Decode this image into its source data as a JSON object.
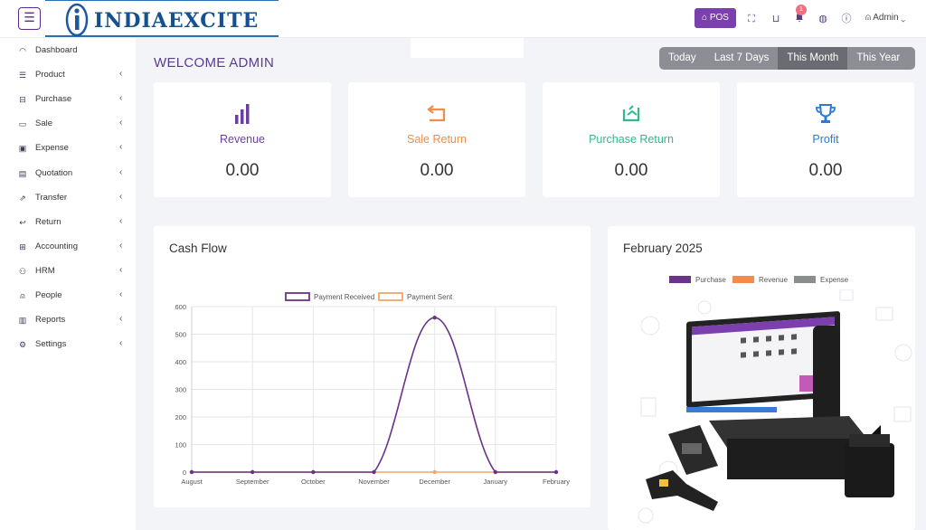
{
  "header": {
    "menu_icon": "hamburger-icon",
    "logo_text": "INDIAEXCITE",
    "pos_label": "POS",
    "notification_count": "1",
    "user_label": "Admin"
  },
  "sidebar": {
    "items": [
      {
        "label": "Dashboard",
        "icon": "dashboard-icon",
        "chevron": ""
      },
      {
        "label": "Product",
        "icon": "list-icon",
        "chevron": "‹"
      },
      {
        "label": "Purchase",
        "icon": "cart-icon",
        "chevron": "‹"
      },
      {
        "label": "Sale",
        "icon": "receipt-icon",
        "chevron": "‹"
      },
      {
        "label": "Expense",
        "icon": "wallet-icon",
        "chevron": "‹"
      },
      {
        "label": "Quotation",
        "icon": "document-icon",
        "chevron": "‹"
      },
      {
        "label": "Transfer",
        "icon": "transfer-icon",
        "chevron": "‹"
      },
      {
        "label": "Return",
        "icon": "return-icon",
        "chevron": "‹"
      },
      {
        "label": "Accounting",
        "icon": "briefcase-icon",
        "chevron": "‹"
      },
      {
        "label": "HRM",
        "icon": "team-icon",
        "chevron": "‹"
      },
      {
        "label": "People",
        "icon": "user-icon",
        "chevron": "‹"
      },
      {
        "label": "Reports",
        "icon": "report-icon",
        "chevron": "‹"
      },
      {
        "label": "Settings",
        "icon": "gear-icon",
        "chevron": "‹"
      }
    ]
  },
  "main": {
    "welcome": "WELCOME ADMIN",
    "ranges": [
      "Today",
      "Last 7 Days",
      "This Month",
      "This Year"
    ],
    "active_range": "This Month",
    "cards": [
      {
        "label": "Revenue",
        "value": "0.00",
        "color": "#6b3fa0",
        "icon": "bar-chart-icon"
      },
      {
        "label": "Sale Return",
        "value": "0.00",
        "color": "#f08c4c",
        "icon": "return-arrow-icon"
      },
      {
        "label": "Purchase Return",
        "value": "0.00",
        "color": "#2dba8e",
        "icon": "refresh-box-icon"
      },
      {
        "label": "Profit",
        "value": "0.00",
        "color": "#2b7bd6",
        "icon": "trophy-icon"
      }
    ],
    "cashflow_title": "Cash Flow",
    "month_panel_title": "February 2025",
    "month_legend": [
      {
        "name": "Purchase",
        "color": "#6b3387"
      },
      {
        "name": "Revenue",
        "color": "#f28c4e"
      },
      {
        "name": "Expense",
        "color": "#8a8f8c"
      }
    ]
  },
  "chart_data": {
    "type": "line",
    "x": [
      "August",
      "September",
      "October",
      "November",
      "December",
      "January",
      "February"
    ],
    "series": [
      {
        "name": "Payment Received",
        "color": "#6b3387",
        "values": [
          0,
          0,
          0,
          0,
          560,
          0,
          0
        ]
      },
      {
        "name": "Payment Sent",
        "color": "#f2a66a",
        "values": [
          0,
          0,
          0,
          0,
          0,
          0,
          0
        ]
      }
    ],
    "ylim": [
      0,
      600
    ],
    "yticks": [
      0,
      100,
      200,
      300,
      400,
      500,
      600
    ],
    "legend": "top-center",
    "grid": true
  }
}
